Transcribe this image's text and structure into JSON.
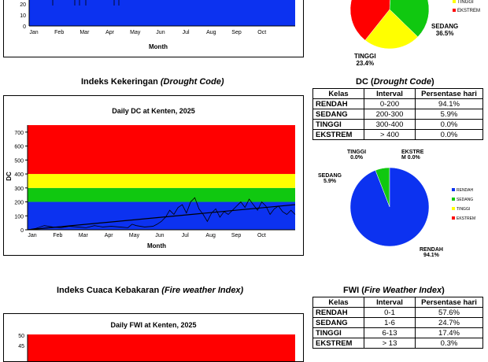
{
  "colors": {
    "rendah": "#0c32f0",
    "sedang": "#10c810",
    "tinggi": "#ffff00",
    "ekstrem": "#ff0000",
    "trend": "#000000"
  },
  "top": {
    "ticks_y": [
      "20",
      "10",
      "0"
    ],
    "months": [
      "Jan",
      "Feb",
      "Mar",
      "Apr",
      "May",
      "Jun",
      "Jul",
      "Aug",
      "Sep",
      "Oct"
    ],
    "xlabel": "Month",
    "pie_labels": {
      "tinggi": {
        "name": "TINGGI",
        "pct": "23.4%"
      },
      "sedang": {
        "name": "SEDANG",
        "pct": "36.5%"
      }
    },
    "legend": [
      "TINGGI",
      "EKSTREM"
    ]
  },
  "dc": {
    "heading_plain": "Indeks Kekeringan ",
    "heading_em": "(Drought Code)",
    "chart_title": "Daily DC at Kenten, 2025",
    "ylabel": "DC",
    "xlabel": "Month",
    "yticks": [
      "700",
      "600",
      "500",
      "400",
      "300",
      "200",
      "100",
      "0"
    ],
    "months": [
      "Jan",
      "Feb",
      "Mar",
      "Apr",
      "May",
      "Jun",
      "Jul",
      "Aug",
      "Sep",
      "Oct"
    ],
    "table_title_plain": "DC (",
    "table_title_em": "Drought Code",
    "table_title_end": ")",
    "table_header": [
      "Kelas",
      "Interval",
      "Persentase hari"
    ],
    "table_rows": [
      [
        "RENDAH",
        "0-200",
        "94.1%"
      ],
      [
        "SEDANG",
        "200-300",
        "5.9%"
      ],
      [
        "TINGGI",
        "300-400",
        "0.0%"
      ],
      [
        "EKSTREM",
        "> 400",
        "0.0%"
      ]
    ],
    "pie_labels": {
      "tinggi": {
        "name": "TINGGI",
        "pct": "0.0%"
      },
      "ekstrem": {
        "name": "EKSTRE",
        "name2": "M 0.0%"
      },
      "sedang": {
        "name": "SEDANG",
        "pct": "5.9%"
      },
      "rendah": {
        "name": "RENDAH",
        "pct": "94.1%"
      }
    },
    "legend": [
      "RENDAH",
      "SEDANG",
      "TINGGI",
      "EKSTREM"
    ]
  },
  "fwi": {
    "heading_plain": "Indeks Cuaca Kebakaran ",
    "heading_em": "(Fire weather Index)",
    "chart_title": "Daily FWI at Kenten, 2025",
    "yticks": [
      "50",
      "45"
    ],
    "table_title_plain": "FWI (",
    "table_title_em": "Fire Weather Index",
    "table_title_end": ")",
    "table_header": [
      "Kelas",
      "Interval",
      "Persentase hari"
    ],
    "table_rows": [
      [
        "RENDAH",
        "0-1",
        "57.6%"
      ],
      [
        "SEDANG",
        "1-6",
        "24.7%"
      ],
      [
        "TINGGI",
        "6-13",
        "17.4%"
      ],
      [
        "EKSTREM",
        "> 13",
        "0.3%"
      ]
    ]
  },
  "chart_data": [
    {
      "type": "line",
      "title": "Daily DC at Kenten, 2025",
      "xlabel": "Month",
      "ylabel": "DC",
      "ylim": [
        0,
        750
      ],
      "bands": [
        {
          "from": 0,
          "to": 200,
          "class": "RENDAH"
        },
        {
          "from": 200,
          "to": 300,
          "class": "SEDANG"
        },
        {
          "from": 300,
          "to": 400,
          "class": "TINGGI"
        },
        {
          "from": 400,
          "to": 750,
          "class": "EKSTREM"
        }
      ],
      "x": [
        0,
        10,
        20,
        30,
        40,
        50,
        60,
        70,
        80,
        90,
        100,
        110,
        120,
        125,
        130,
        140,
        150,
        155,
        160,
        165,
        170,
        175,
        180,
        185,
        190,
        195,
        200,
        205,
        210,
        215,
        220,
        225,
        230,
        235,
        240,
        245,
        250,
        255,
        260,
        265,
        270,
        275,
        280,
        285,
        290,
        295,
        300,
        305,
        310,
        315,
        320
      ],
      "series": [
        {
          "values": [
            0,
            10,
            30,
            20,
            15,
            25,
            20,
            15,
            30,
            20,
            25,
            20,
            15,
            40,
            30,
            20,
            25,
            40,
            60,
            90,
            140,
            110,
            160,
            180,
            120,
            200,
            230,
            150,
            110,
            60,
            120,
            150,
            90,
            130,
            110,
            140,
            170,
            200,
            160,
            220,
            180,
            140,
            200,
            170,
            110,
            150,
            170,
            130,
            110,
            140,
            110
          ]
        }
      ],
      "trend": [
        [
          0,
          0
        ],
        [
          320,
          180
        ]
      ]
    },
    {
      "type": "pie",
      "title": "DC",
      "categories": [
        "RENDAH",
        "SEDANG",
        "TINGGI",
        "EKSTREM"
      ],
      "values": [
        94.1,
        5.9,
        0.0,
        0.0
      ]
    },
    {
      "type": "pie",
      "categories": [
        "TINGGI",
        "SEDANG"
      ],
      "values": [
        23.4,
        36.5
      ]
    },
    {
      "type": "table",
      "title": "FWI (Fire Weather Index)",
      "categories": [
        "RENDAH",
        "SEDANG",
        "TINGGI",
        "EKSTREM"
      ],
      "values": [
        57.6,
        24.7,
        17.4,
        0.3
      ]
    }
  ]
}
